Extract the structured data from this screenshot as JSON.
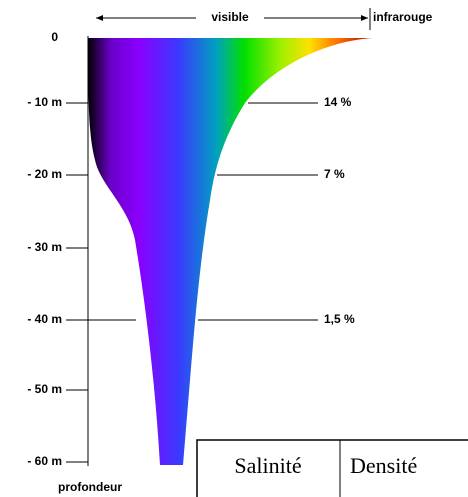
{
  "header": {
    "visible": "visible",
    "infrared": "infrarouge"
  },
  "depth_axis": {
    "labels": [
      "0",
      "- 10 m",
      "- 20 m",
      "- 30 m",
      "- 40 m",
      "- 50 m",
      "- 60 m"
    ],
    "title": "profondeur"
  },
  "percentages": [
    "14 %",
    "7 %",
    "1,5 %"
  ],
  "table": {
    "headers": [
      "Salinité",
      "Densité"
    ]
  }
}
